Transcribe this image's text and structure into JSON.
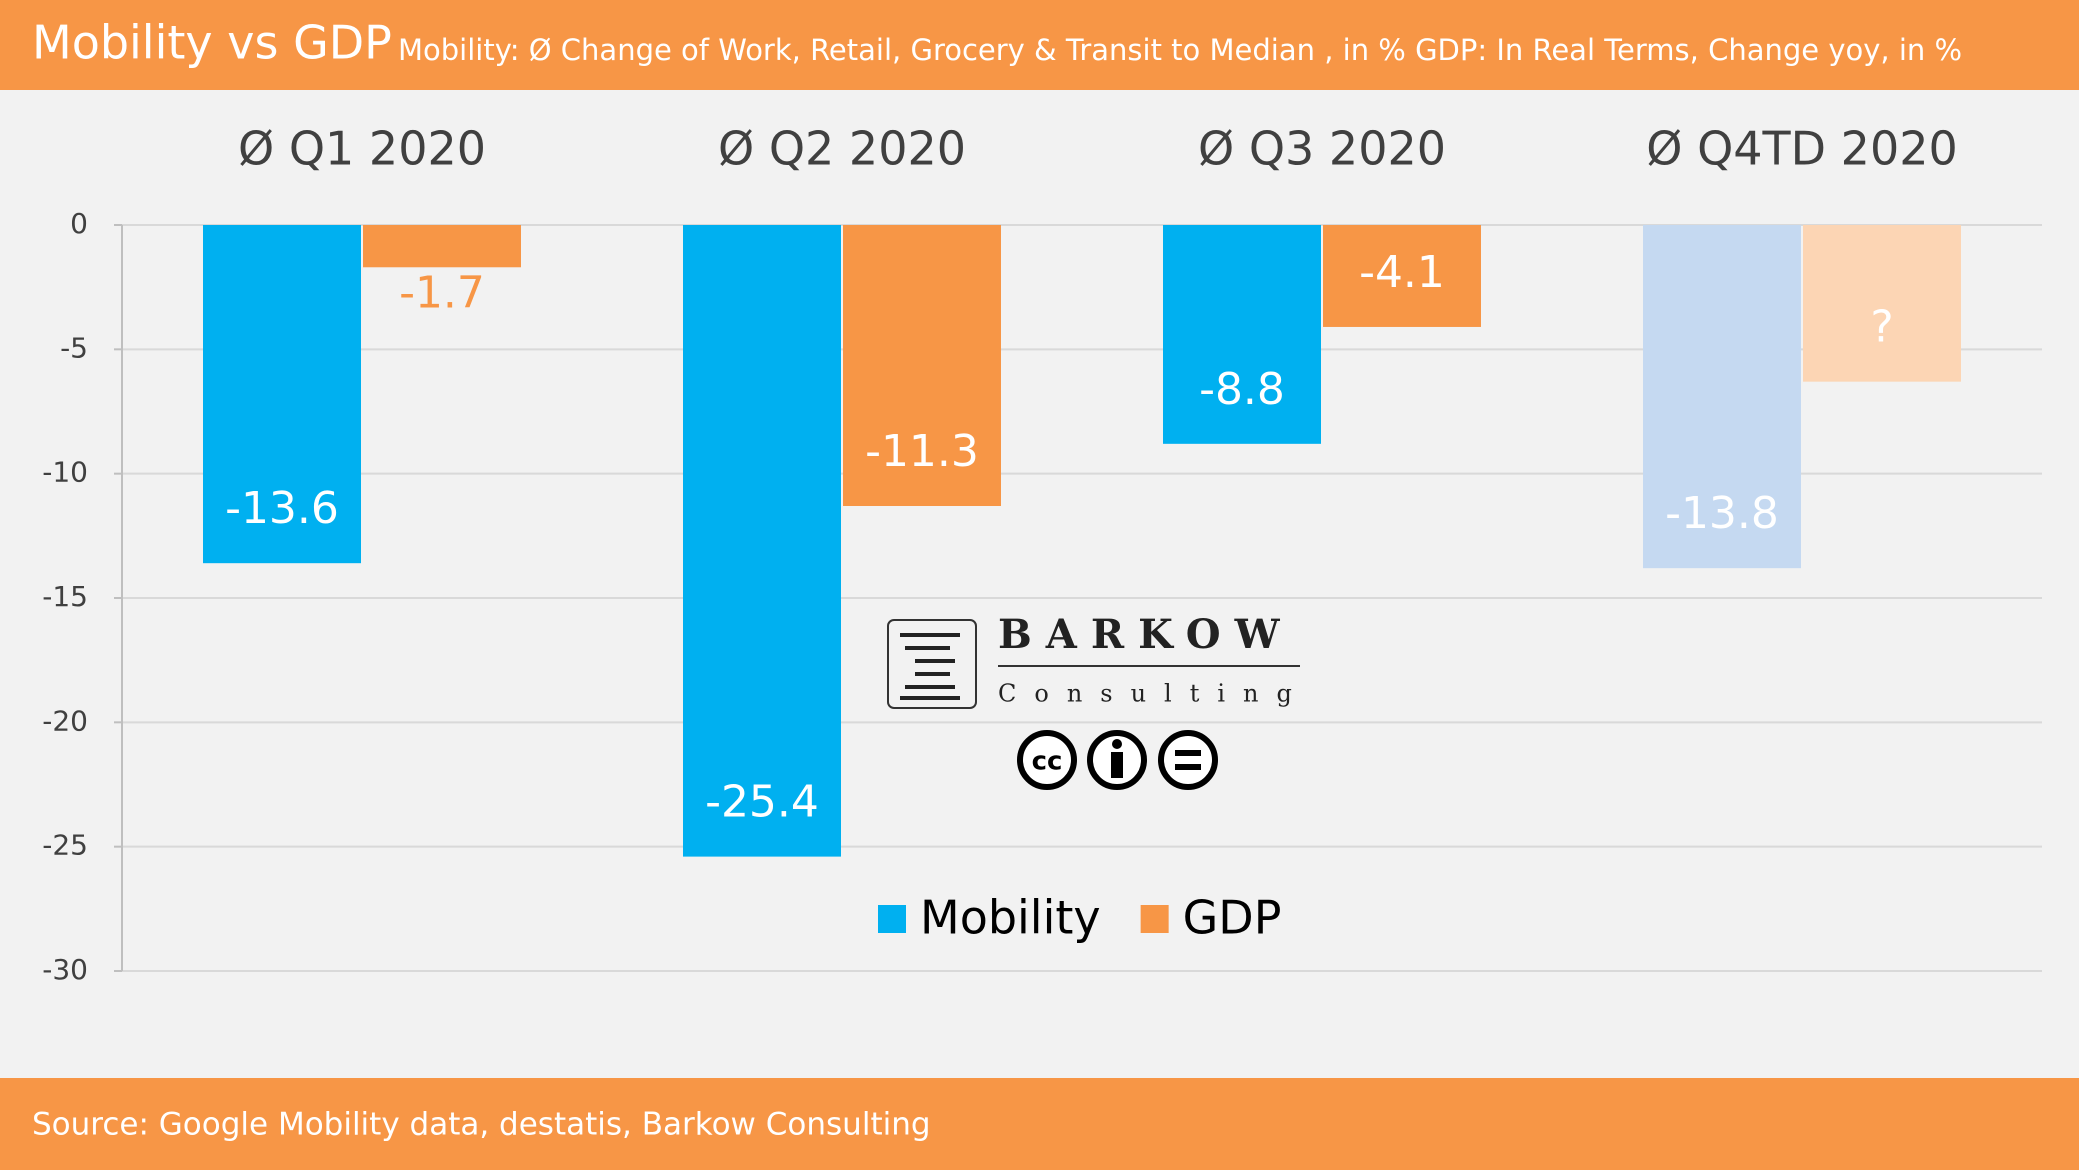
{
  "chart_data": {
    "type": "bar",
    "title": "Mobility vs GDP",
    "subtitle": "Mobility: Ø Change of Work, Retail, Grocery & Transit to Median , in % GDP: In Real Terms, Change yoy, in %",
    "source": "Source: Google Mobility data, destatis, Barkow Consulting",
    "categories": [
      "Ø Q1 2020",
      "Ø Q2 2020",
      "Ø Q3 2020",
      "Ø Q4TD 2020"
    ],
    "series": [
      {
        "name": "Mobility",
        "color": "#00b0f0",
        "colors": [
          "#00b0f0",
          "#00b0f0",
          "#00b0f0",
          "#c5d9f1"
        ],
        "values": [
          -13.6,
          -25.4,
          -8.8,
          -13.8
        ]
      },
      {
        "name": "GDP",
        "color": "#f79646",
        "colors": [
          "#f79646",
          "#f79646",
          "#f79646",
          "#fcd5b4"
        ],
        "values": [
          -1.7,
          -11.3,
          -4.1,
          -6.3
        ],
        "value_labels": [
          "-1.7",
          "-11.3",
          "-4.1",
          "?"
        ]
      }
    ],
    "ylim": [
      -30,
      0
    ],
    "yticks": [
      0,
      -5,
      -10,
      -15,
      -20,
      -25,
      -30
    ],
    "grid": true,
    "legend": "bottom",
    "logo": {
      "name": "BARKOW",
      "sub": "Consulting"
    }
  }
}
